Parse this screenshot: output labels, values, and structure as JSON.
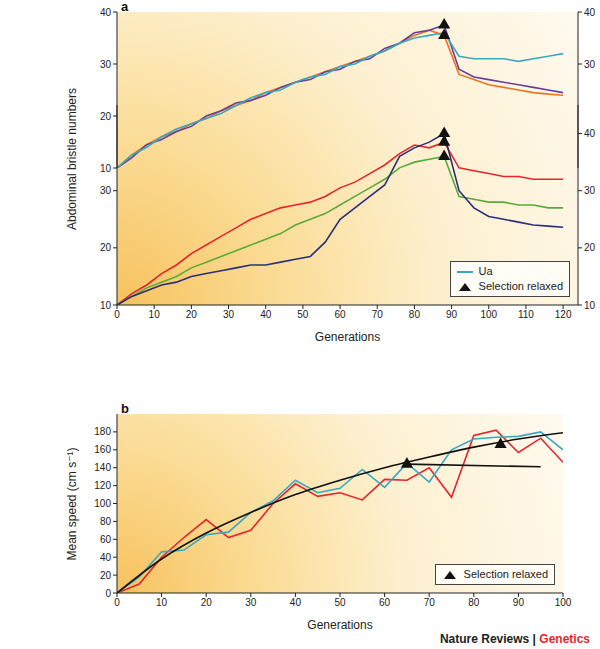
{
  "credit": {
    "text": "Nature Reviews |",
    "highlight": "Genetics"
  },
  "chart_data": [
    {
      "type": "line",
      "panel": "a",
      "y_label": "Abdominal bristle numbers",
      "x": [
        0,
        4,
        8,
        12,
        16,
        20,
        24,
        28,
        32,
        36,
        40,
        44,
        48,
        52,
        56,
        60,
        64,
        68,
        72,
        76,
        80,
        84,
        88,
        92,
        96,
        100,
        104,
        108,
        112,
        116,
        120
      ],
      "xlim": [
        0,
        124
      ],
      "ylim": [
        10,
        40
      ],
      "yticks": [
        10,
        20,
        30,
        40
      ],
      "y2lim": [
        10,
        40
      ],
      "y2ticks": [
        30,
        40
      ],
      "series": [
        {
          "color": "#e87722",
          "values": [
            10,
            12.5,
            14.5,
            16,
            17,
            18.5,
            19.5,
            21,
            22,
            23,
            24.5,
            25.5,
            26.5,
            27.5,
            28.5,
            29.5,
            30.5,
            31.5,
            32.5,
            34,
            35.5,
            36.5,
            35.5,
            28,
            27,
            26,
            25.5,
            25,
            24.5,
            24.2,
            24
          ]
        },
        {
          "color": "#6a3d9a",
          "values": [
            10,
            12,
            14.5,
            15.5,
            17,
            18,
            20,
            21,
            22.5,
            23,
            24,
            25.5,
            26.5,
            27,
            28.5,
            29,
            30.5,
            31,
            33,
            34,
            36,
            36.5,
            37.5,
            29,
            27.5,
            27,
            26.5,
            26,
            25.5,
            25,
            24.5
          ]
        },
        {
          "name": "Ua",
          "color": "#3aa8c1",
          "values": [
            10,
            12.5,
            14,
            16,
            17.5,
            18.5,
            19.5,
            20.5,
            22,
            23.5,
            24.5,
            25,
            26.5,
            27.5,
            28,
            29.5,
            30,
            31.5,
            32.5,
            34,
            35,
            35.5,
            36,
            31.5,
            31,
            31,
            31,
            30.5,
            31,
            31.5,
            32
          ]
        },
        {
          "name": "Selection relaxed",
          "type": "scatter",
          "marker": "triangle",
          "color": "#111111",
          "x": [
            88,
            88
          ],
          "values": [
            37.5,
            35.5
          ]
        }
      ]
    },
    {
      "type": "line",
      "panel": "a",
      "x_label": "Generations",
      "legend": "lower right",
      "x": [
        0,
        4,
        8,
        12,
        16,
        20,
        24,
        28,
        32,
        36,
        40,
        44,
        48,
        52,
        56,
        60,
        64,
        68,
        72,
        76,
        80,
        84,
        88,
        92,
        96,
        100,
        104,
        108,
        112,
        116,
        120
      ],
      "xlim": [
        0,
        124
      ],
      "xticks": [
        0,
        10,
        20,
        30,
        40,
        50,
        60,
        70,
        80,
        90,
        100,
        110,
        120
      ],
      "ylim": [
        10,
        45
      ],
      "yticks": [
        10,
        20,
        30
      ],
      "y2lim": [
        10,
        45
      ],
      "y2ticks": [
        10,
        20,
        30,
        40
      ],
      "series": [
        {
          "color": "#e3262d",
          "axis": "y2",
          "values": [
            10,
            12,
            13.5,
            15.5,
            17,
            19,
            20.5,
            22,
            23.5,
            25,
            26,
            27,
            27.5,
            28,
            29,
            30.5,
            31.5,
            33,
            34.5,
            36.5,
            38,
            37.5,
            38.5,
            34,
            33.5,
            33,
            32.5,
            32.5,
            32,
            32,
            32
          ]
        },
        {
          "color": "#5aaa3a",
          "axis": "y2",
          "values": [
            10,
            11.5,
            13,
            14,
            15,
            16.5,
            17.5,
            18.5,
            19.5,
            20.5,
            21.5,
            22.5,
            24,
            25,
            26,
            27.5,
            29,
            30.5,
            32,
            34,
            35,
            35.5,
            36,
            29,
            28.5,
            28,
            28,
            27.5,
            27.5,
            27,
            27
          ]
        },
        {
          "color": "#2b2f7a",
          "axis": "y2",
          "values": [
            10,
            11.5,
            12.5,
            13.5,
            14,
            15,
            15.5,
            16,
            16.5,
            17,
            17,
            17.5,
            18,
            18.5,
            21,
            25,
            27,
            29,
            31,
            36,
            37.5,
            38.5,
            40,
            30,
            27,
            25.5,
            25,
            24.5,
            24,
            23.8,
            23.6
          ]
        },
        {
          "name": "Selection relaxed",
          "type": "scatter",
          "marker": "triangle",
          "color": "#111111",
          "axis": "y2",
          "x": [
            88,
            88,
            88
          ],
          "values": [
            38.5,
            36,
            40
          ]
        }
      ]
    },
    {
      "type": "line",
      "panel": "b",
      "x_label": "Generations",
      "y_label": "Mean speed (cm s⁻¹)",
      "legend": "lower right",
      "x": [
        0,
        5,
        10,
        15,
        20,
        25,
        30,
        35,
        40,
        45,
        50,
        55,
        60,
        65,
        70,
        75,
        80,
        85,
        90,
        95,
        100
      ],
      "xlim": [
        0,
        100
      ],
      "xticks": [
        0,
        10,
        20,
        30,
        40,
        50,
        60,
        70,
        80,
        90,
        100
      ],
      "ylim": [
        0,
        200
      ],
      "yticks": [
        0,
        20,
        40,
        60,
        80,
        100,
        120,
        140,
        160,
        180
      ],
      "series": [
        {
          "color": "#e3262d",
          "values": [
            0,
            10,
            40,
            62,
            82,
            62,
            70,
            100,
            122,
            108,
            112,
            104,
            127,
            126,
            140,
            107,
            176,
            182,
            157,
            173,
            146
          ]
        },
        {
          "color": "#3aa8c1",
          "values": [
            0,
            18,
            46,
            48,
            65,
            68,
            90,
            103,
            126,
            112,
            117,
            138,
            118,
            145,
            124,
            160,
            172,
            174,
            175,
            180,
            160
          ]
        },
        {
          "color": "#111111",
          "line_style": "smooth",
          "x": [
            0,
            10,
            20,
            30,
            40,
            50,
            60,
            70,
            80,
            90,
            100
          ],
          "values": [
            0,
            38,
            67,
            90,
            110,
            126,
            140,
            152,
            163,
            172,
            179
          ]
        },
        {
          "color": "#111111",
          "line_style": "solid",
          "x": [
            65,
            95
          ],
          "values": [
            144,
            141
          ]
        },
        {
          "name": "Selection relaxed",
          "type": "scatter",
          "marker": "triangle",
          "color": "#111111",
          "x": [
            65,
            86
          ],
          "values": [
            144,
            166
          ]
        }
      ]
    }
  ]
}
